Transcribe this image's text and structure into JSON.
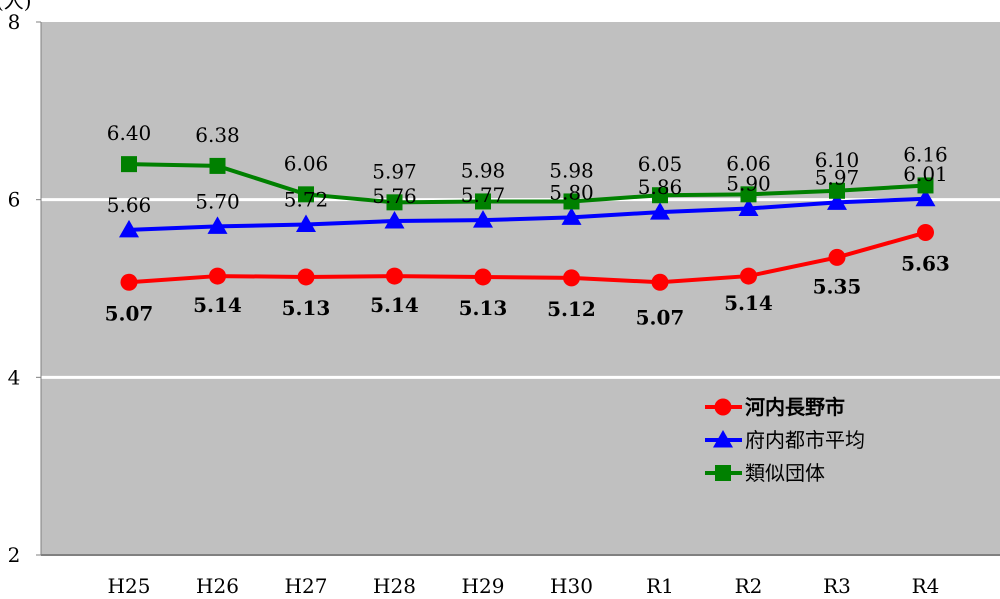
{
  "chart_data": {
    "type": "line",
    "unit_label": "(人)",
    "categories": [
      "H25",
      "H26",
      "H27",
      "H28",
      "H29",
      "H30",
      "R1",
      "R2",
      "R3",
      "R4"
    ],
    "ylim": [
      2,
      8
    ],
    "yticks": [
      "2",
      "4",
      "6",
      "8"
    ],
    "grid": true,
    "legend_position": "bottom-right",
    "series": [
      {
        "name": "河内長野市",
        "color": "#ff0000",
        "marker": "circle",
        "bold": true,
        "values": [
          5.07,
          5.14,
          5.13,
          5.14,
          5.13,
          5.12,
          5.07,
          5.14,
          5.35,
          5.63
        ],
        "labels": [
          "5.07",
          "5.14",
          "5.13",
          "5.14",
          "5.13",
          "5.12",
          "5.07",
          "5.14",
          "5.35",
          "5.63"
        ]
      },
      {
        "name": "府内都市平均",
        "color": "#0000ff",
        "marker": "triangle",
        "bold": false,
        "values": [
          5.66,
          5.7,
          5.72,
          5.76,
          5.77,
          5.8,
          5.86,
          5.9,
          5.97,
          6.01
        ],
        "labels": [
          "5.66",
          "5.70",
          "5.72",
          "5.76",
          "5.77",
          "5.80",
          "5.86",
          "5.90",
          "5.97",
          "6.01"
        ]
      },
      {
        "name": "類似団体",
        "color": "#008000",
        "marker": "square",
        "bold": false,
        "values": [
          6.4,
          6.38,
          6.06,
          5.97,
          5.98,
          5.98,
          6.05,
          6.06,
          6.1,
          6.16
        ],
        "labels": [
          "6.40",
          "6.38",
          "6.06",
          "5.97",
          "5.98",
          "5.98",
          "6.05",
          "6.06",
          "6.10",
          "6.16"
        ]
      }
    ]
  }
}
